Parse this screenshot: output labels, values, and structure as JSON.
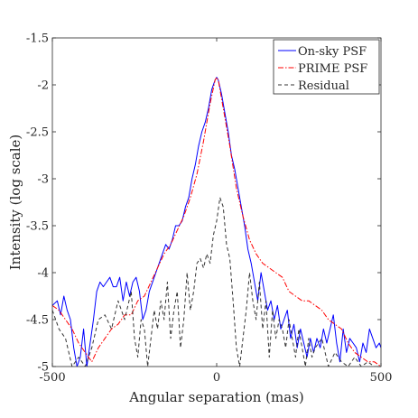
{
  "chart_data": {
    "type": "line",
    "xlabel": "Angular separation (mas)",
    "ylabel": "Intensity (log scale)",
    "xlim": [
      -500,
      500
    ],
    "ylim": [
      -5,
      -1.5
    ],
    "xticks": [
      -500,
      0,
      500
    ],
    "yticks": [
      -5,
      -4.5,
      -4,
      -3.5,
      -3,
      -2.5,
      -2,
      -1.5
    ],
    "grid": false,
    "legend_position": "top-right",
    "series": [
      {
        "name": "On-sky PSF",
        "color": "#0000ff",
        "style": "solid",
        "x": [
          -500,
          -485,
          -475,
          -465,
          -455,
          -445,
          -435,
          -425,
          -415,
          -405,
          -395,
          -385,
          -375,
          -365,
          -355,
          -345,
          -335,
          -325,
          -315,
          -305,
          -295,
          -285,
          -275,
          -265,
          -255,
          -245,
          -235,
          -225,
          -215,
          -205,
          -195,
          -185,
          -175,
          -165,
          -155,
          -145,
          -135,
          -125,
          -115,
          -105,
          -95,
          -85,
          -75,
          -65,
          -55,
          -45,
          -35,
          -25,
          -15,
          -5,
          0,
          5,
          15,
          25,
          35,
          45,
          55,
          65,
          75,
          85,
          95,
          105,
          115,
          125,
          135,
          145,
          155,
          165,
          175,
          185,
          195,
          205,
          215,
          225,
          235,
          245,
          255,
          265,
          275,
          285,
          295,
          305,
          315,
          325,
          335,
          345,
          355,
          365,
          375,
          385,
          395,
          405,
          415,
          425,
          435,
          445,
          455,
          465,
          475,
          485,
          495,
          500
        ],
        "y": [
          -4.35,
          -4.3,
          -4.45,
          -4.25,
          -4.4,
          -4.5,
          -4.8,
          -5.0,
          -4.9,
          -4.6,
          -5.0,
          -4.75,
          -4.5,
          -4.2,
          -4.1,
          -4.15,
          -4.1,
          -4.05,
          -4.15,
          -4.15,
          -4.05,
          -4.3,
          -4.1,
          -4.25,
          -4.1,
          -4.05,
          -4.2,
          -4.5,
          -4.4,
          -4.2,
          -4.1,
          -4.0,
          -3.9,
          -3.8,
          -3.7,
          -3.75,
          -3.65,
          -3.5,
          -3.5,
          -3.45,
          -3.3,
          -3.2,
          -3.0,
          -2.85,
          -2.65,
          -2.5,
          -2.4,
          -2.25,
          -2.05,
          -1.95,
          -1.92,
          -1.95,
          -2.1,
          -2.3,
          -2.5,
          -2.75,
          -2.9,
          -3.1,
          -3.3,
          -3.5,
          -3.75,
          -3.9,
          -4.1,
          -4.3,
          -4.0,
          -4.2,
          -4.4,
          -4.3,
          -4.5,
          -4.35,
          -4.6,
          -4.5,
          -4.4,
          -4.7,
          -4.55,
          -4.8,
          -4.6,
          -4.75,
          -4.9,
          -4.7,
          -4.85,
          -4.7,
          -4.8,
          -4.6,
          -4.75,
          -4.6,
          -4.45,
          -4.75,
          -4.95,
          -4.6,
          -4.85,
          -4.7,
          -4.75,
          -4.8,
          -4.95,
          -4.75,
          -4.85,
          -4.6,
          -4.7,
          -4.8,
          -4.75,
          -4.8
        ]
      },
      {
        "name": "PRIME PSF",
        "color": "#ff0000",
        "style": "dashdot",
        "x": [
          -500,
          -480,
          -460,
          -440,
          -420,
          -400,
          -380,
          -360,
          -340,
          -320,
          -300,
          -280,
          -260,
          -240,
          -220,
          -200,
          -180,
          -160,
          -140,
          -120,
          -100,
          -80,
          -60,
          -40,
          -20,
          -5,
          0,
          5,
          20,
          40,
          60,
          80,
          100,
          120,
          140,
          160,
          180,
          200,
          220,
          240,
          260,
          280,
          300,
          320,
          340,
          360,
          380,
          400,
          420,
          440,
          460,
          480,
          500
        ],
        "y": [
          -4.35,
          -4.4,
          -4.5,
          -4.6,
          -4.75,
          -4.85,
          -4.95,
          -4.8,
          -4.7,
          -4.6,
          -4.55,
          -4.45,
          -4.45,
          -4.3,
          -4.25,
          -4.1,
          -3.95,
          -3.8,
          -3.7,
          -3.55,
          -3.4,
          -3.2,
          -2.95,
          -2.6,
          -2.2,
          -1.95,
          -1.92,
          -1.95,
          -2.25,
          -2.65,
          -3.1,
          -3.4,
          -3.65,
          -3.8,
          -3.9,
          -3.95,
          -4.0,
          -4.05,
          -4.2,
          -4.25,
          -4.3,
          -4.3,
          -4.35,
          -4.4,
          -4.5,
          -4.55,
          -4.6,
          -4.75,
          -4.85,
          -4.9,
          -4.95,
          -4.95,
          -5.0
        ]
      },
      {
        "name": "Residual",
        "color": "#333333",
        "style": "dashed",
        "x": [
          -500,
          -480,
          -460,
          -440,
          -420,
          -400,
          -380,
          -360,
          -340,
          -320,
          -300,
          -280,
          -260,
          -250,
          -240,
          -230,
          -220,
          -210,
          -200,
          -190,
          -180,
          -170,
          -160,
          -150,
          -140,
          -130,
          -120,
          -110,
          -100,
          -90,
          -80,
          -70,
          -60,
          -50,
          -40,
          -30,
          -20,
          -10,
          0,
          10,
          20,
          30,
          40,
          50,
          60,
          70,
          80,
          90,
          100,
          110,
          120,
          130,
          140,
          150,
          160,
          170,
          180,
          190,
          200,
          210,
          220,
          230,
          240,
          250,
          260,
          270,
          280,
          290,
          300,
          320,
          340,
          360,
          380,
          400,
          420,
          440,
          460,
          480,
          500
        ],
        "y": [
          -4.4,
          -4.6,
          -4.7,
          -5.0,
          -4.9,
          -5.0,
          -4.8,
          -4.5,
          -4.45,
          -4.6,
          -4.3,
          -4.5,
          -4.2,
          -4.7,
          -4.9,
          -4.5,
          -4.6,
          -5.0,
          -4.7,
          -4.4,
          -4.6,
          -4.3,
          -4.5,
          -4.1,
          -4.7,
          -4.4,
          -4.2,
          -4.8,
          -4.5,
          -4.0,
          -4.4,
          -4.2,
          -3.9,
          -3.85,
          -3.95,
          -3.8,
          -3.9,
          -3.6,
          -3.45,
          -3.2,
          -3.3,
          -3.7,
          -3.85,
          -4.3,
          -4.8,
          -5.0,
          -4.7,
          -4.4,
          -4.0,
          -4.3,
          -4.5,
          -4.1,
          -4.6,
          -4.3,
          -4.9,
          -4.4,
          -4.7,
          -4.5,
          -4.6,
          -4.8,
          -4.5,
          -4.7,
          -4.9,
          -4.6,
          -4.8,
          -5.0,
          -4.7,
          -4.9,
          -4.8,
          -4.7,
          -5.0,
          -4.85,
          -4.95,
          -5.0,
          -4.9,
          -5.0,
          -4.95,
          -5.0,
          -5.0
        ]
      }
    ]
  }
}
